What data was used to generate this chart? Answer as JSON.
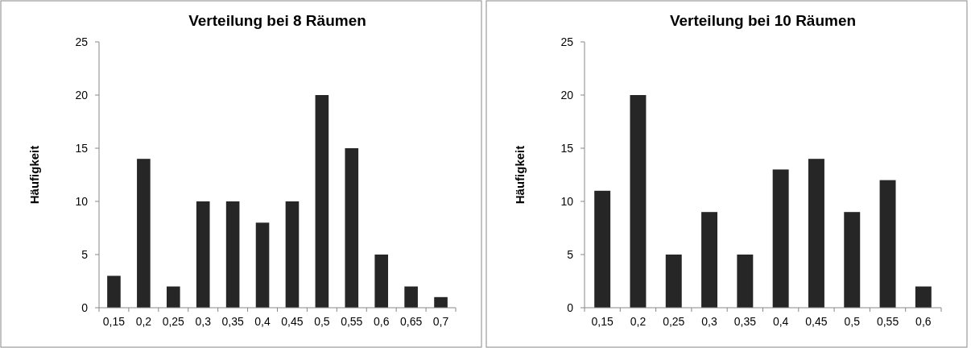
{
  "chart_data": [
    {
      "type": "bar",
      "title": "Verteilung bei 8 Räumen",
      "ylabel": "Häufigkeit",
      "categories": [
        "0,15",
        "0,2",
        "0,25",
        "0,3",
        "0,35",
        "0,4",
        "0,45",
        "0,5",
        "0,55",
        "0,6",
        "0,65",
        "0,7"
      ],
      "values": [
        3,
        14,
        2,
        10,
        10,
        8,
        10,
        20,
        15,
        5,
        2,
        1
      ],
      "color": "#262626",
      "ylim": [
        0,
        25
      ],
      "yticks": [
        0,
        5,
        10,
        15,
        20,
        25
      ]
    },
    {
      "type": "bar",
      "title": "Verteilung bei 10 Räumen",
      "ylabel": "Häufigkeit",
      "categories": [
        "0,15",
        "0,2",
        "0,25",
        "0,3",
        "0,35",
        "0,4",
        "0,45",
        "0,5",
        "0,55",
        "0,6"
      ],
      "values": [
        11,
        20,
        5,
        9,
        5,
        13,
        14,
        9,
        12,
        2
      ],
      "color": "#262626",
      "ylim": [
        0,
        25
      ],
      "yticks": [
        0,
        5,
        10,
        15,
        20,
        25
      ]
    }
  ]
}
